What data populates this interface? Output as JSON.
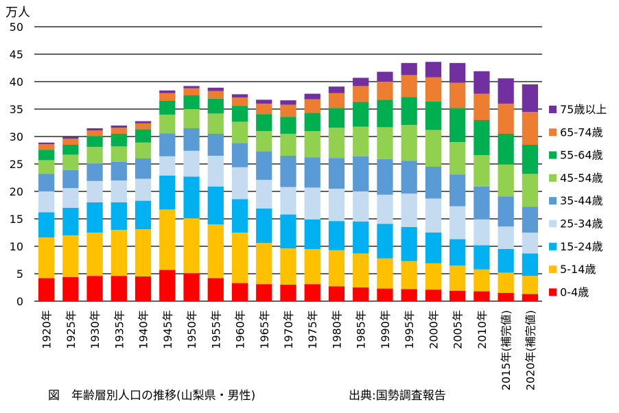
{
  "chart_data": {
    "type": "bar",
    "stacked": true,
    "unit_label": "万人",
    "categories": [
      "1920年",
      "1925年",
      "1930年",
      "1935年",
      "1940年",
      "1945年",
      "1950年",
      "1955年",
      "1960年",
      "1965年",
      "1970年",
      "1975年",
      "1980年",
      "1985年",
      "1990年",
      "1995年",
      "2000年",
      "2005年",
      "2010年",
      "2015年(補完値)",
      "2020年(補完値)"
    ],
    "ylim": [
      0,
      50
    ],
    "yticks": [
      0,
      5,
      10,
      15,
      20,
      25,
      30,
      35,
      40,
      45,
      50
    ],
    "grid": true,
    "legend_position": "right",
    "series": [
      {
        "name": "0-4歳",
        "color": "#ff0000",
        "values": [
          4.2,
          4.4,
          4.6,
          4.6,
          4.5,
          5.7,
          5.1,
          4.2,
          3.3,
          3.1,
          3.0,
          3.1,
          2.7,
          2.5,
          2.3,
          2.2,
          2.1,
          1.9,
          1.8,
          1.5,
          1.3
        ]
      },
      {
        "name": "5-14歳",
        "color": "#ffc000",
        "values": [
          7.4,
          7.6,
          7.9,
          8.4,
          8.6,
          11.0,
          10.0,
          9.8,
          9.2,
          7.5,
          6.6,
          6.4,
          6.6,
          6.2,
          5.5,
          5.1,
          4.8,
          4.6,
          4.0,
          3.7,
          3.3
        ]
      },
      {
        "name": "15-24歳",
        "color": "#00b0f0",
        "values": [
          4.6,
          5.0,
          5.5,
          5.0,
          5.2,
          6.2,
          7.6,
          6.9,
          6.1,
          6.3,
          6.2,
          5.4,
          5.3,
          5.8,
          6.3,
          6.2,
          5.6,
          4.8,
          4.4,
          4.3,
          4.1
        ]
      },
      {
        "name": "25-34歳",
        "color": "#c5dcf0",
        "values": [
          3.8,
          3.6,
          3.9,
          4.0,
          4.0,
          3.5,
          4.7,
          5.6,
          5.8,
          5.2,
          5.0,
          5.8,
          5.9,
          5.5,
          5.3,
          6.1,
          6.2,
          6.0,
          4.7,
          4.1,
          3.8
        ]
      },
      {
        "name": "35-44歳",
        "color": "#5b9bd5",
        "values": [
          3.2,
          3.3,
          3.2,
          3.4,
          3.7,
          4.2,
          4.1,
          4.0,
          4.4,
          5.2,
          5.7,
          5.5,
          5.6,
          6.4,
          6.5,
          6.0,
          5.8,
          5.8,
          6.0,
          5.5,
          4.7
        ]
      },
      {
        "name": "45-54歳",
        "color": "#92d050",
        "values": [
          2.5,
          2.8,
          3.0,
          2.8,
          2.9,
          3.4,
          3.5,
          3.7,
          3.9,
          3.7,
          4.0,
          4.8,
          5.5,
          5.4,
          5.8,
          6.5,
          6.7,
          5.9,
          5.7,
          5.8,
          6.0
        ]
      },
      {
        "name": "55-64歳",
        "color": "#00b050",
        "values": [
          1.9,
          1.8,
          2.0,
          2.3,
          2.4,
          2.5,
          2.5,
          2.7,
          2.9,
          3.1,
          3.1,
          3.3,
          3.6,
          4.5,
          5.0,
          5.1,
          5.2,
          6.2,
          6.4,
          5.6,
          5.3
        ]
      },
      {
        "name": "65-74歳",
        "color": "#ed7d31",
        "values": [
          1.0,
          1.1,
          1.0,
          1.1,
          1.1,
          1.4,
          1.3,
          1.4,
          1.5,
          1.9,
          2.2,
          2.5,
          2.7,
          2.9,
          3.3,
          4.0,
          4.4,
          4.6,
          4.8,
          5.5,
          6.0
        ]
      },
      {
        "name": "75歳以上",
        "color": "#7030a0",
        "values": [
          0.3,
          0.3,
          0.4,
          0.4,
          0.4,
          0.5,
          0.4,
          0.6,
          0.6,
          0.7,
          0.8,
          1.0,
          1.2,
          1.5,
          1.8,
          2.2,
          2.8,
          3.6,
          4.1,
          4.6,
          5.0
        ]
      }
    ]
  },
  "captions": {
    "left": "図　年齢層別人口の推移(山梨県・男性)",
    "right": "出典:国勢調査報告"
  }
}
